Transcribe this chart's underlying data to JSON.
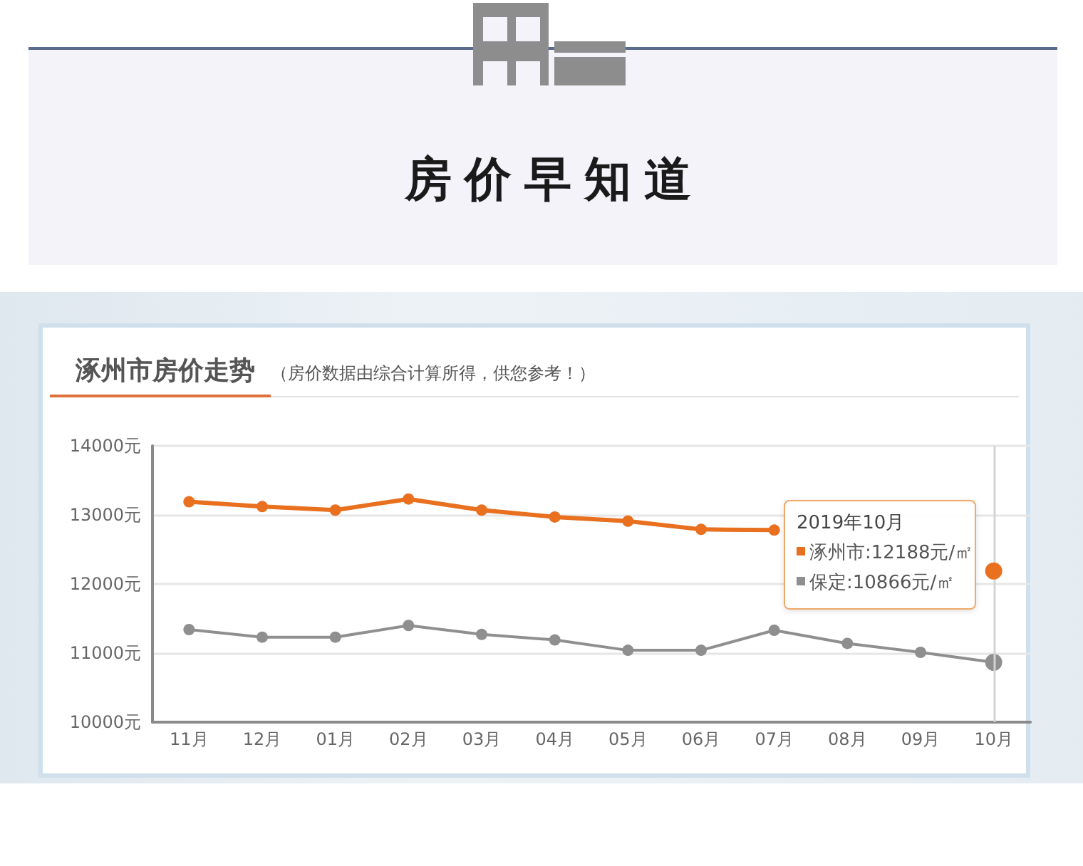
{
  "chart_data": {
    "type": "line",
    "title": "房价早知道",
    "subtitle": "涿州市房价走势",
    "annotations": [
      "（房价数据由综合计算所得，供您参考！）",
      "2019年10月",
      "涿州市:12188元/㎡",
      "保定:10866元/㎡"
    ],
    "categories": [
      "11月",
      "12月",
      "01月",
      "02月",
      "03月",
      "04月",
      "05月",
      "06月",
      "07月",
      "08月",
      "09月",
      "10月"
    ],
    "series": [
      {
        "color": "#e8701f",
        "values": [
          13190,
          13120,
          13070,
          13230,
          13070,
          12970,
          12910,
          12790,
          12780,
          null,
          null,
          12188
        ]
      },
      {
        "color": "#8f8f8f",
        "values": [
          11340,
          11230,
          11230,
          11400,
          11270,
          11190,
          11040,
          11040,
          11330,
          11140,
          11010,
          10866
        ]
      }
    ],
    "ylim": [
      10000,
      14000
    ],
    "yticks": [
      {
        "value": 10000,
        "label": "10000元"
      },
      {
        "value": 11000,
        "label": "11000元"
      },
      {
        "value": 12000,
        "label": "12000元"
      },
      {
        "value": 13000,
        "label": "13000元"
      },
      {
        "value": 14000,
        "label": "14000元"
      }
    ],
    "grid": "y",
    "marker": "circle",
    "ref_lines": [
      {
        "axis": "x",
        "value": "10月",
        "color": "#d4d4d4"
      }
    ]
  }
}
